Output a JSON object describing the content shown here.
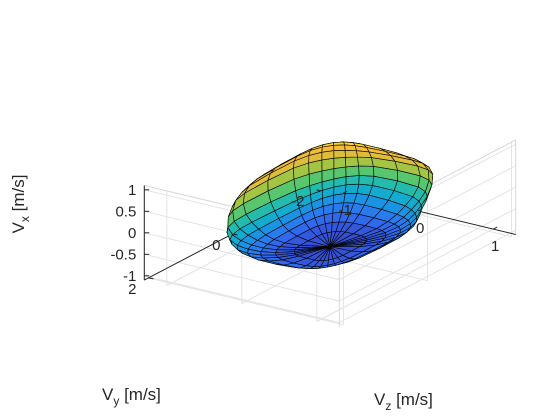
{
  "chart_data": {
    "type": "surface",
    "title": "",
    "grid": true,
    "colormap": "parula",
    "colormap_stops": [
      "#3e26a8",
      "#2f6ff5",
      "#0fa6d8",
      "#28c2a0",
      "#7cc94a",
      "#d3bd3a",
      "#fdbb3a",
      "#f9fb0e"
    ],
    "edge_color": "#000000",
    "axes": {
      "x": {
        "label_main": "V",
        "label_sub": "z",
        "label_unit": " [m/s]",
        "lim": [
          -1.3,
          1.3
        ],
        "ticks": [
          -1,
          0,
          1
        ],
        "tick_labels": [
          "-1",
          "0",
          "1"
        ]
      },
      "y": {
        "label_main": "V",
        "label_sub": "y",
        "label_unit": " [m/s]",
        "lim": [
          -2.1,
          2.1
        ],
        "ticks": [
          -2,
          0,
          2
        ],
        "tick_labels": [
          "-2",
          "0",
          "2"
        ]
      },
      "z": {
        "label_main": "V",
        "label_sub": "x",
        "label_unit": " [m/s]",
        "lim": [
          -1.1,
          1.1
        ],
        "ticks": [
          -1,
          -0.5,
          0,
          0.5,
          1
        ],
        "tick_labels": [
          "-1",
          "-0.5",
          "0",
          "0.5",
          "1"
        ]
      }
    },
    "surface": {
      "shape": "rounded convex blob (reachable velocity set)",
      "center": [
        0.0,
        0.0,
        0.1
      ],
      "radii": [
        0.8,
        1.55,
        0.95
      ],
      "v_min": -1.0,
      "v_max": 0.92,
      "theta_divisions": 16,
      "phi_divisions": 32
    }
  }
}
